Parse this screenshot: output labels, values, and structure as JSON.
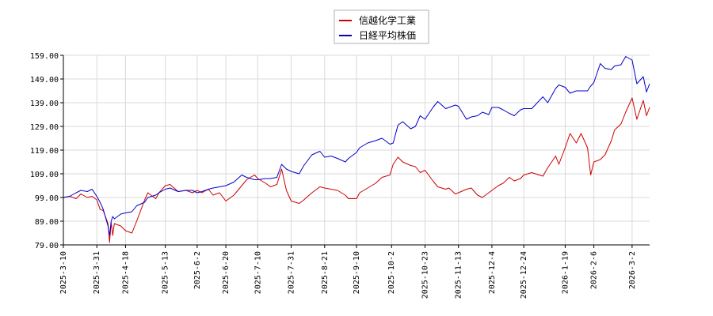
{
  "chart_data": {
    "type": "line",
    "title": "",
    "xlabel": "",
    "ylabel": "",
    "ylim": [
      79.0,
      159.0
    ],
    "xlim": [
      "2025-03-10",
      "2026-03-13"
    ],
    "grid": true,
    "legend_position": "top-center",
    "y_ticks": [
      "79.00",
      "89.00",
      "99.00",
      "109.00",
      "119.00",
      "129.00",
      "139.00",
      "149.00",
      "159.00"
    ],
    "x_ticks": [
      "2025-3-10",
      "2025-3-31",
      "2025-4-18",
      "2025-5-13",
      "2025-6-2",
      "2025-6-20",
      "2025-7-10",
      "2025-7-31",
      "2025-8-21",
      "2025-9-10",
      "2025-10-2",
      "2025-10-23",
      "2025-11-13",
      "2025-12-4",
      "2025-12-24",
      "2026-1-19",
      "2026-2-6",
      "2026-3-2"
    ],
    "series": [
      {
        "name": "信越化学工業",
        "color": "#cc0000",
        "points": [
          [
            "2025-03-10",
            99.0
          ],
          [
            "2025-03-14",
            99.5
          ],
          [
            "2025-03-18",
            98.5
          ],
          [
            "2025-03-21",
            100.5
          ],
          [
            "2025-03-25",
            99.0
          ],
          [
            "2025-03-28",
            99.5
          ],
          [
            "2025-03-31",
            98.0
          ],
          [
            "2025-04-02",
            94.0
          ],
          [
            "2025-04-04",
            93.5
          ],
          [
            "2025-04-07",
            88.0
          ],
          [
            "2025-04-08",
            80.0
          ],
          [
            "2025-04-09",
            88.5
          ],
          [
            "2025-04-10",
            83.0
          ],
          [
            "2025-04-11",
            88.0
          ],
          [
            "2025-04-15",
            87.0
          ],
          [
            "2025-04-18",
            85.0
          ],
          [
            "2025-04-22",
            84.0
          ],
          [
            "2025-04-25",
            89.0
          ],
          [
            "2025-04-30",
            98.0
          ],
          [
            "2025-05-02",
            101.0
          ],
          [
            "2025-05-07",
            98.5
          ],
          [
            "2025-05-09",
            101.0
          ],
          [
            "2025-05-13",
            104.0
          ],
          [
            "2025-05-16",
            104.5
          ],
          [
            "2025-05-21",
            101.5
          ],
          [
            "2025-05-26",
            102.0
          ],
          [
            "2025-05-30",
            101.0
          ],
          [
            "2025-06-02",
            102.0
          ],
          [
            "2025-06-05",
            101.0
          ],
          [
            "2025-06-09",
            102.5
          ],
          [
            "2025-06-12",
            100.0
          ],
          [
            "2025-06-16",
            101.0
          ],
          [
            "2025-06-20",
            97.5
          ],
          [
            "2025-06-25",
            100.0
          ],
          [
            "2025-06-30",
            104.0
          ],
          [
            "2025-07-03",
            106.5
          ],
          [
            "2025-07-08",
            108.5
          ],
          [
            "2025-07-10",
            107.0
          ],
          [
            "2025-07-15",
            105.0
          ],
          [
            "2025-07-18",
            103.5
          ],
          [
            "2025-07-22",
            104.5
          ],
          [
            "2025-07-25",
            111.0
          ],
          [
            "2025-07-28",
            102.0
          ],
          [
            "2025-07-31",
            97.5
          ],
          [
            "2025-08-05",
            96.5
          ],
          [
            "2025-08-08",
            98.0
          ],
          [
            "2025-08-13",
            101.0
          ],
          [
            "2025-08-18",
            103.5
          ],
          [
            "2025-08-21",
            103.0
          ],
          [
            "2025-08-25",
            102.5
          ],
          [
            "2025-08-29",
            102.0
          ],
          [
            "2025-09-03",
            100.0
          ],
          [
            "2025-09-05",
            98.5
          ],
          [
            "2025-09-10",
            98.5
          ],
          [
            "2025-09-12",
            101.0
          ],
          [
            "2025-09-17",
            103.0
          ],
          [
            "2025-09-22",
            105.0
          ],
          [
            "2025-09-26",
            107.5
          ],
          [
            "2025-10-01",
            108.5
          ],
          [
            "2025-10-03",
            113.0
          ],
          [
            "2025-10-06",
            116.0
          ],
          [
            "2025-10-09",
            114.0
          ],
          [
            "2025-10-14",
            112.5
          ],
          [
            "2025-10-17",
            112.0
          ],
          [
            "2025-10-20",
            109.5
          ],
          [
            "2025-10-23",
            110.5
          ],
          [
            "2025-10-28",
            106.0
          ],
          [
            "2025-10-31",
            103.5
          ],
          [
            "2025-11-05",
            102.5
          ],
          [
            "2025-11-07",
            103.0
          ],
          [
            "2025-11-11",
            100.5
          ],
          [
            "2025-11-13",
            101.0
          ],
          [
            "2025-11-18",
            102.5
          ],
          [
            "2025-11-21",
            103.0
          ],
          [
            "2025-11-25",
            100.0
          ],
          [
            "2025-11-28",
            99.0
          ],
          [
            "2025-12-02",
            101.0
          ],
          [
            "2025-12-04",
            102.0
          ],
          [
            "2025-12-08",
            104.0
          ],
          [
            "2025-12-11",
            105.0
          ],
          [
            "2025-12-15",
            107.5
          ],
          [
            "2025-12-18",
            106.0
          ],
          [
            "2025-12-22",
            107.0
          ],
          [
            "2025-12-24",
            108.5
          ],
          [
            "2025-12-29",
            109.5
          ],
          [
            "2026-01-05",
            108.0
          ],
          [
            "2026-01-08",
            111.5
          ],
          [
            "2026-01-13",
            116.5
          ],
          [
            "2026-01-15",
            113.0
          ],
          [
            "2026-01-19",
            120.0
          ],
          [
            "2026-01-22",
            126.0
          ],
          [
            "2026-01-26",
            122.0
          ],
          [
            "2026-01-29",
            126.0
          ],
          [
            "2026-02-02",
            120.0
          ],
          [
            "2026-02-04",
            108.5
          ],
          [
            "2026-02-06",
            114.0
          ],
          [
            "2026-02-10",
            115.0
          ],
          [
            "2026-02-13",
            117.0
          ],
          [
            "2026-02-17",
            123.0
          ],
          [
            "2026-02-19",
            127.5
          ],
          [
            "2026-02-23",
            130.0
          ],
          [
            "2026-02-26",
            135.0
          ],
          [
            "2026-03-02",
            141.0
          ],
          [
            "2026-03-05",
            132.0
          ],
          [
            "2026-03-09",
            140.0
          ],
          [
            "2026-03-11",
            133.5
          ],
          [
            "2026-03-13",
            137.0
          ]
        ]
      },
      {
        "name": "日経平均株価",
        "color": "#0000cc",
        "points": [
          [
            "2025-03-10",
            99.0
          ],
          [
            "2025-03-14",
            99.5
          ],
          [
            "2025-03-18",
            101.0
          ],
          [
            "2025-03-21",
            102.0
          ],
          [
            "2025-03-25",
            101.5
          ],
          [
            "2025-03-28",
            102.5
          ],
          [
            "2025-03-31",
            99.5
          ],
          [
            "2025-04-02",
            97.0
          ],
          [
            "2025-04-04",
            94.0
          ],
          [
            "2025-04-07",
            87.0
          ],
          [
            "2025-04-08",
            83.0
          ],
          [
            "2025-04-09",
            89.0
          ],
          [
            "2025-04-10",
            91.0
          ],
          [
            "2025-04-11",
            90.0
          ],
          [
            "2025-04-15",
            92.0
          ],
          [
            "2025-04-18",
            92.5
          ],
          [
            "2025-04-22",
            93.0
          ],
          [
            "2025-04-25",
            95.5
          ],
          [
            "2025-04-30",
            97.0
          ],
          [
            "2025-05-02",
            99.0
          ],
          [
            "2025-05-07",
            100.0
          ],
          [
            "2025-05-09",
            101.0
          ],
          [
            "2025-05-13",
            102.5
          ],
          [
            "2025-05-16",
            103.0
          ],
          [
            "2025-05-21",
            101.5
          ],
          [
            "2025-05-26",
            102.0
          ],
          [
            "2025-05-30",
            102.0
          ],
          [
            "2025-06-02",
            101.0
          ],
          [
            "2025-06-05",
            101.5
          ],
          [
            "2025-06-09",
            102.5
          ],
          [
            "2025-06-12",
            103.0
          ],
          [
            "2025-06-16",
            103.5
          ],
          [
            "2025-06-20",
            104.0
          ],
          [
            "2025-06-25",
            105.5
          ],
          [
            "2025-06-30",
            108.5
          ],
          [
            "2025-07-03",
            107.5
          ],
          [
            "2025-07-08",
            106.5
          ],
          [
            "2025-07-10",
            106.5
          ],
          [
            "2025-07-15",
            107.0
          ],
          [
            "2025-07-18",
            107.0
          ],
          [
            "2025-07-22",
            107.5
          ],
          [
            "2025-07-25",
            113.0
          ],
          [
            "2025-07-28",
            111.0
          ],
          [
            "2025-07-31",
            110.0
          ],
          [
            "2025-08-05",
            109.0
          ],
          [
            "2025-08-08",
            112.5
          ],
          [
            "2025-08-13",
            117.0
          ],
          [
            "2025-08-18",
            118.5
          ],
          [
            "2025-08-21",
            116.0
          ],
          [
            "2025-08-25",
            116.5
          ],
          [
            "2025-08-29",
            115.5
          ],
          [
            "2025-09-03",
            114.0
          ],
          [
            "2025-09-05",
            115.5
          ],
          [
            "2025-09-10",
            118.0
          ],
          [
            "2025-09-12",
            120.0
          ],
          [
            "2025-09-17",
            122.0
          ],
          [
            "2025-09-22",
            123.0
          ],
          [
            "2025-09-26",
            124.0
          ],
          [
            "2025-10-01",
            121.5
          ],
          [
            "2025-10-03",
            122.0
          ],
          [
            "2025-10-06",
            129.5
          ],
          [
            "2025-10-09",
            131.0
          ],
          [
            "2025-10-14",
            128.0
          ],
          [
            "2025-10-17",
            129.0
          ],
          [
            "2025-10-20",
            133.5
          ],
          [
            "2025-10-23",
            132.0
          ],
          [
            "2025-10-28",
            137.0
          ],
          [
            "2025-10-31",
            139.5
          ],
          [
            "2025-11-05",
            136.5
          ],
          [
            "2025-11-07",
            137.0
          ],
          [
            "2025-11-11",
            138.0
          ],
          [
            "2025-11-13",
            137.5
          ],
          [
            "2025-11-18",
            132.0
          ],
          [
            "2025-11-21",
            133.0
          ],
          [
            "2025-11-25",
            133.5
          ],
          [
            "2025-11-28",
            135.0
          ],
          [
            "2025-12-02",
            134.0
          ],
          [
            "2025-12-04",
            137.0
          ],
          [
            "2025-12-08",
            137.0
          ],
          [
            "2025-12-11",
            136.0
          ],
          [
            "2025-12-15",
            134.5
          ],
          [
            "2025-12-18",
            133.5
          ],
          [
            "2025-12-22",
            136.0
          ],
          [
            "2025-12-24",
            136.5
          ],
          [
            "2025-12-29",
            136.5
          ],
          [
            "2026-01-05",
            141.5
          ],
          [
            "2026-01-08",
            139.0
          ],
          [
            "2026-01-13",
            145.0
          ],
          [
            "2026-01-15",
            146.5
          ],
          [
            "2026-01-19",
            145.5
          ],
          [
            "2026-01-22",
            143.0
          ],
          [
            "2026-01-26",
            144.0
          ],
          [
            "2026-01-29",
            144.0
          ],
          [
            "2026-02-02",
            144.0
          ],
          [
            "2026-02-04",
            146.0
          ],
          [
            "2026-02-06",
            147.5
          ],
          [
            "2026-02-10",
            155.5
          ],
          [
            "2026-02-13",
            153.5
          ],
          [
            "2026-02-17",
            153.0
          ],
          [
            "2026-02-19",
            154.5
          ],
          [
            "2026-02-23",
            155.0
          ],
          [
            "2026-02-26",
            158.5
          ],
          [
            "2026-03-02",
            157.0
          ],
          [
            "2026-03-05",
            147.0
          ],
          [
            "2026-03-09",
            150.0
          ],
          [
            "2026-03-11",
            143.5
          ],
          [
            "2026-03-13",
            147.0
          ]
        ]
      }
    ]
  }
}
